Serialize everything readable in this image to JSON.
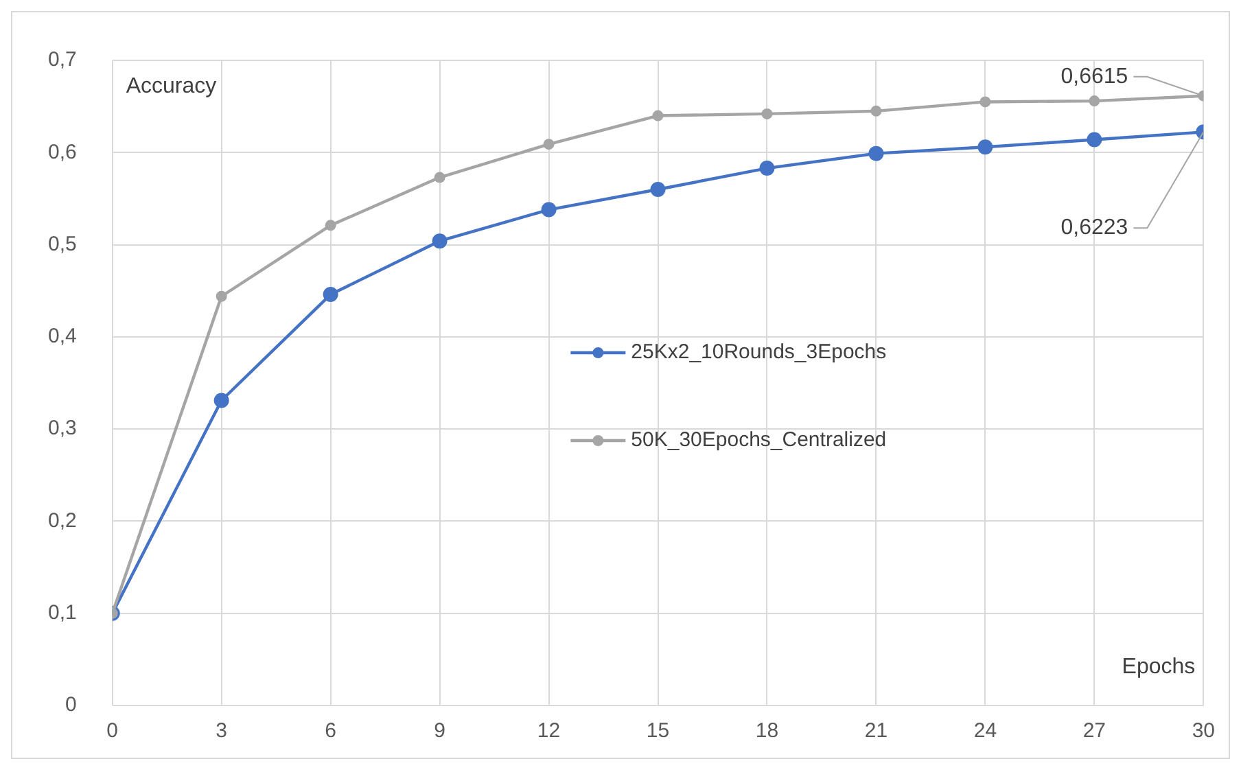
{
  "chart_data": {
    "type": "line",
    "xlabel": "Epochs",
    "ylabel": "Accuracy",
    "x": [
      0,
      3,
      6,
      9,
      12,
      15,
      18,
      21,
      24,
      27,
      30
    ],
    "xlim": [
      0,
      30
    ],
    "xticks": [
      0,
      3,
      6,
      9,
      12,
      15,
      18,
      21,
      24,
      27,
      30
    ],
    "ylim": [
      0,
      0.7
    ],
    "yticks": [
      0,
      {
        "value": 0.1,
        "label": "0,1"
      },
      {
        "value": 0.2,
        "label": "0,2"
      },
      {
        "value": 0.3,
        "label": "0,3"
      },
      {
        "value": 0.4,
        "label": "0,4"
      },
      {
        "value": 0.5,
        "label": "0,5"
      },
      {
        "value": 0.6,
        "label": "0,6"
      },
      {
        "value": 0.7,
        "label": "0,7"
      }
    ],
    "grid": true,
    "legend": "center",
    "marker": "circle",
    "line_style": "solid",
    "series": [
      {
        "name": "25Kx2_10Rounds_3Epochs",
        "color": "#4472c4",
        "values": [
          0.1,
          0.331,
          0.446,
          0.504,
          0.538,
          0.56,
          0.583,
          0.599,
          0.606,
          0.614,
          0.6223
        ],
        "value_labels": [
          null,
          null,
          null,
          null,
          null,
          null,
          null,
          null,
          null,
          null,
          "0,6223"
        ]
      },
      {
        "name": "50K_30Epochs_Centralized",
        "color": "#a5a5a5",
        "values": [
          0.1,
          0.444,
          0.521,
          0.573,
          0.609,
          0.64,
          0.642,
          0.645,
          0.655,
          0.656,
          0.6615
        ],
        "value_labels": [
          null,
          null,
          null,
          null,
          null,
          null,
          null,
          null,
          null,
          null,
          "0,6615"
        ]
      }
    ]
  }
}
